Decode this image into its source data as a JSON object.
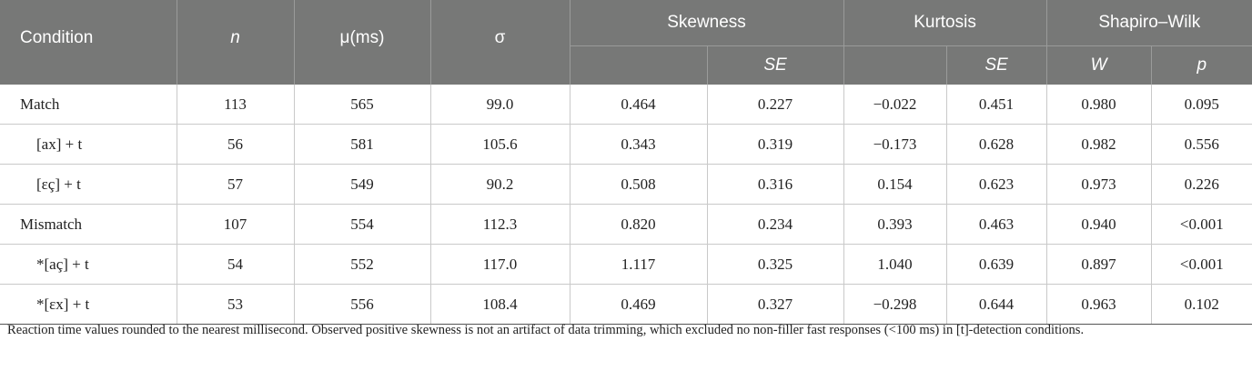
{
  "header": {
    "condition": "Condition",
    "n": "n",
    "mu": "μ(ms)",
    "sigma": "σ",
    "skewness": "Skewness",
    "kurtosis": "Kurtosis",
    "shapiro": "Shapiro–Wilk",
    "se": "SE",
    "w": "W",
    "p": "p"
  },
  "rows": [
    {
      "label": "Match",
      "n": "113",
      "mu": "565",
      "sigma": "99.0",
      "skew": "0.464",
      "skew_se": "0.227",
      "kurt": "−0.022",
      "kurt_se": "0.451",
      "w": "0.980",
      "p": "0.095"
    },
    {
      "label": "[ax] + t",
      "n": "56",
      "mu": "581",
      "sigma": "105.6",
      "skew": "0.343",
      "skew_se": "0.319",
      "kurt": "−0.173",
      "kurt_se": "0.628",
      "w": "0.982",
      "p": "0.556"
    },
    {
      "label": "[εç] + t",
      "n": "57",
      "mu": "549",
      "sigma": "90.2",
      "skew": "0.508",
      "skew_se": "0.316",
      "kurt": "0.154",
      "kurt_se": "0.623",
      "w": "0.973",
      "p": "0.226"
    },
    {
      "label": "Mismatch",
      "n": "107",
      "mu": "554",
      "sigma": "112.3",
      "skew": "0.820",
      "skew_se": "0.234",
      "kurt": "0.393",
      "kurt_se": "0.463",
      "w": "0.940",
      "p": "<0.001"
    },
    {
      "label": "*[aç] + t",
      "n": "54",
      "mu": "552",
      "sigma": "117.0",
      "skew": "1.117",
      "skew_se": "0.325",
      "kurt": "1.040",
      "kurt_se": "0.639",
      "w": "0.897",
      "p": "<0.001"
    },
    {
      "label": "*[εx] + t",
      "n": "53",
      "mu": "556",
      "sigma": "108.4",
      "skew": "0.469",
      "skew_se": "0.327",
      "kurt": "−0.298",
      "kurt_se": "0.644",
      "w": "0.963",
      "p": "0.102"
    }
  ],
  "footnote": "Reaction time values rounded to the nearest millisecond. Observed positive skewness is not an artifact of data trimming, which excluded no non-filler fast responses (<100 ms) in [t]-detection conditions."
}
